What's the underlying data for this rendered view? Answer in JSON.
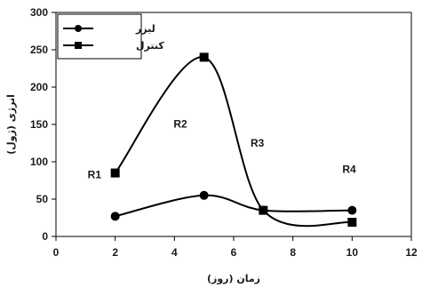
{
  "chart_data": {
    "type": "line",
    "xlabel": "زمان (روز)",
    "ylabel": "انرژی (ژول)",
    "xlim": [
      0,
      12
    ],
    "ylim": [
      0,
      300
    ],
    "xticks": [
      0,
      2,
      4,
      6,
      8,
      10,
      12
    ],
    "yticks": [
      0,
      50,
      100,
      150,
      200,
      250,
      300
    ],
    "smooth": true,
    "grid": false,
    "legend_position": "top-left",
    "series": [
      {
        "name": "لیزر",
        "marker": "circle",
        "color": "#000000",
        "x": [
          2,
          5,
          7,
          10
        ],
        "y": [
          27,
          55,
          35,
          35
        ]
      },
      {
        "name": "کنترل",
        "marker": "square",
        "color": "#000000",
        "x": [
          2,
          5,
          7,
          10
        ],
        "y": [
          85,
          240,
          35,
          19
        ]
      }
    ],
    "annotations": [
      {
        "text": "R1",
        "x": 1.3,
        "y": 78
      },
      {
        "text": "R2",
        "x": 4.2,
        "y": 146
      },
      {
        "text": "R3",
        "x": 6.8,
        "y": 120
      },
      {
        "text": "R4",
        "x": 9.9,
        "y": 85
      }
    ]
  }
}
